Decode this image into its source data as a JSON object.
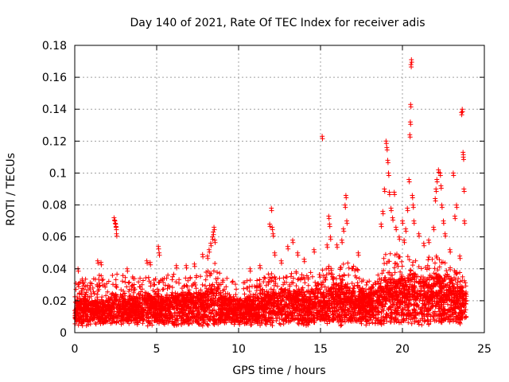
{
  "chart_data": {
    "type": "scatter",
    "title": "Day 140 of 2021, Rate Of TEC Index for receiver adis",
    "xlabel": "GPS time / hours",
    "ylabel": "ROTI / TECUs",
    "xlim": [
      0,
      25
    ],
    "ylim": [
      0,
      0.18
    ],
    "xticks": [
      0,
      5,
      10,
      15,
      20,
      25
    ],
    "xtick_labels": [
      "0",
      "5",
      "10",
      "15",
      "20",
      "25"
    ],
    "yticks": [
      0,
      0.02,
      0.04,
      0.06,
      0.08,
      0.1,
      0.12,
      0.14,
      0.16,
      0.18
    ],
    "ytick_labels": [
      "0",
      "0.02",
      "0.04",
      "0.06",
      "0.08",
      "0.1",
      "0.12",
      "0.14",
      "0.16",
      "0.18"
    ],
    "grid": true,
    "marker": "+",
    "color": "#ff0000",
    "series": [
      {
        "name": "ROTI",
        "envelope": {
          "x": [
            0,
            0.5,
            1,
            1.5,
            2,
            2.5,
            3,
            3.5,
            4,
            4.5,
            5,
            5.5,
            6,
            6.5,
            7,
            7.5,
            8,
            8.5,
            9,
            9.5,
            10,
            10.5,
            11,
            11.5,
            12,
            12.5,
            13,
            13.5,
            14,
            14.5,
            15,
            15.5,
            16,
            16.5,
            17,
            17.5,
            18,
            18.5,
            19,
            19.5,
            20,
            20.5,
            21,
            21.5,
            22,
            22.5,
            23,
            23.5,
            23.9
          ],
          "base": [
            0.012,
            0.014,
            0.013,
            0.013,
            0.013,
            0.015,
            0.014,
            0.014,
            0.014,
            0.015,
            0.014,
            0.014,
            0.015,
            0.015,
            0.015,
            0.015,
            0.016,
            0.018,
            0.015,
            0.014,
            0.013,
            0.014,
            0.015,
            0.015,
            0.016,
            0.016,
            0.016,
            0.016,
            0.016,
            0.016,
            0.016,
            0.017,
            0.018,
            0.018,
            0.017,
            0.016,
            0.016,
            0.017,
            0.02,
            0.02,
            0.02,
            0.022,
            0.02,
            0.02,
            0.022,
            0.02,
            0.02,
            0.018,
            0.016
          ],
          "upper": [
            0.032,
            0.034,
            0.033,
            0.036,
            0.035,
            0.037,
            0.037,
            0.036,
            0.036,
            0.038,
            0.036,
            0.036,
            0.037,
            0.036,
            0.035,
            0.036,
            0.038,
            0.045,
            0.036,
            0.033,
            0.032,
            0.034,
            0.036,
            0.038,
            0.04,
            0.038,
            0.037,
            0.04,
            0.038,
            0.038,
            0.04,
            0.042,
            0.04,
            0.045,
            0.042,
            0.038,
            0.035,
            0.038,
            0.05,
            0.055,
            0.045,
            0.05,
            0.045,
            0.048,
            0.05,
            0.045,
            0.04,
            0.038,
            0.032
          ]
        },
        "sample_count": 5200,
        "outliers": [
          {
            "x": 0.2,
            "y": 0.04
          },
          {
            "x": 1.4,
            "y": 0.045
          },
          {
            "x": 1.6,
            "y": 0.044
          },
          {
            "x": 2.4,
            "y": 0.072
          },
          {
            "x": 2.45,
            "y": 0.07
          },
          {
            "x": 2.5,
            "y": 0.068
          },
          {
            "x": 2.52,
            "y": 0.066
          },
          {
            "x": 2.55,
            "y": 0.062
          },
          {
            "x": 3.2,
            "y": 0.04
          },
          {
            "x": 4.4,
            "y": 0.045
          },
          {
            "x": 4.6,
            "y": 0.044
          },
          {
            "x": 5.1,
            "y": 0.054
          },
          {
            "x": 5.15,
            "y": 0.05
          },
          {
            "x": 6.2,
            "y": 0.042
          },
          {
            "x": 6.8,
            "y": 0.042
          },
          {
            "x": 7.3,
            "y": 0.043
          },
          {
            "x": 7.8,
            "y": 0.049
          },
          {
            "x": 8.3,
            "y": 0.056
          },
          {
            "x": 8.4,
            "y": 0.06
          },
          {
            "x": 8.45,
            "y": 0.063
          },
          {
            "x": 8.5,
            "y": 0.066
          },
          {
            "x": 8.55,
            "y": 0.058
          },
          {
            "x": 8.2,
            "y": 0.052
          },
          {
            "x": 8.1,
            "y": 0.048
          },
          {
            "x": 10.7,
            "y": 0.04
          },
          {
            "x": 11.3,
            "y": 0.042
          },
          {
            "x": 11.9,
            "y": 0.068
          },
          {
            "x": 12.0,
            "y": 0.078
          },
          {
            "x": 12.05,
            "y": 0.066
          },
          {
            "x": 12.1,
            "y": 0.062
          },
          {
            "x": 12.2,
            "y": 0.05
          },
          {
            "x": 12.6,
            "y": 0.045
          },
          {
            "x": 13.0,
            "y": 0.054
          },
          {
            "x": 13.3,
            "y": 0.058
          },
          {
            "x": 13.6,
            "y": 0.05
          },
          {
            "x": 14.0,
            "y": 0.046
          },
          {
            "x": 14.6,
            "y": 0.052
          },
          {
            "x": 15.1,
            "y": 0.123
          },
          {
            "x": 15.5,
            "y": 0.073
          },
          {
            "x": 15.55,
            "y": 0.068
          },
          {
            "x": 15.6,
            "y": 0.06
          },
          {
            "x": 15.4,
            "y": 0.055
          },
          {
            "x": 16.0,
            "y": 0.055
          },
          {
            "x": 16.4,
            "y": 0.065
          },
          {
            "x": 16.5,
            "y": 0.08
          },
          {
            "x": 16.55,
            "y": 0.086
          },
          {
            "x": 16.6,
            "y": 0.07
          },
          {
            "x": 16.3,
            "y": 0.058
          },
          {
            "x": 17.3,
            "y": 0.05
          },
          {
            "x": 18.7,
            "y": 0.068
          },
          {
            "x": 18.8,
            "y": 0.076
          },
          {
            "x": 18.9,
            "y": 0.09
          },
          {
            "x": 19.0,
            "y": 0.12
          },
          {
            "x": 19.05,
            "y": 0.116
          },
          {
            "x": 19.1,
            "y": 0.108
          },
          {
            "x": 19.15,
            "y": 0.1
          },
          {
            "x": 19.2,
            "y": 0.088
          },
          {
            "x": 19.3,
            "y": 0.078
          },
          {
            "x": 19.4,
            "y": 0.072
          },
          {
            "x": 19.5,
            "y": 0.088
          },
          {
            "x": 19.6,
            "y": 0.066
          },
          {
            "x": 19.8,
            "y": 0.06
          },
          {
            "x": 20.0,
            "y": 0.07
          },
          {
            "x": 20.1,
            "y": 0.058
          },
          {
            "x": 20.2,
            "y": 0.065
          },
          {
            "x": 20.3,
            "y": 0.078
          },
          {
            "x": 20.4,
            "y": 0.096
          },
          {
            "x": 20.45,
            "y": 0.124
          },
          {
            "x": 20.48,
            "y": 0.132
          },
          {
            "x": 20.5,
            "y": 0.143
          },
          {
            "x": 20.52,
            "y": 0.168
          },
          {
            "x": 20.55,
            "y": 0.171
          },
          {
            "x": 20.6,
            "y": 0.086
          },
          {
            "x": 20.65,
            "y": 0.08
          },
          {
            "x": 20.7,
            "y": 0.07
          },
          {
            "x": 21.0,
            "y": 0.062
          },
          {
            "x": 21.3,
            "y": 0.056
          },
          {
            "x": 21.6,
            "y": 0.058
          },
          {
            "x": 21.9,
            "y": 0.066
          },
          {
            "x": 22.0,
            "y": 0.084
          },
          {
            "x": 22.05,
            "y": 0.09
          },
          {
            "x": 22.1,
            "y": 0.096
          },
          {
            "x": 22.2,
            "y": 0.102
          },
          {
            "x": 22.3,
            "y": 0.1
          },
          {
            "x": 22.35,
            "y": 0.092
          },
          {
            "x": 22.4,
            "y": 0.08
          },
          {
            "x": 22.5,
            "y": 0.07
          },
          {
            "x": 22.6,
            "y": 0.062
          },
          {
            "x": 22.9,
            "y": 0.052
          },
          {
            "x": 23.1,
            "y": 0.1
          },
          {
            "x": 23.3,
            "y": 0.08
          },
          {
            "x": 23.2,
            "y": 0.073
          },
          {
            "x": 23.5,
            "y": 0.048
          },
          {
            "x": 23.6,
            "y": 0.138
          },
          {
            "x": 23.65,
            "y": 0.14
          },
          {
            "x": 23.7,
            "y": 0.113
          },
          {
            "x": 23.72,
            "y": 0.11
          },
          {
            "x": 23.75,
            "y": 0.09
          },
          {
            "x": 23.78,
            "y": 0.07
          }
        ]
      }
    ]
  }
}
